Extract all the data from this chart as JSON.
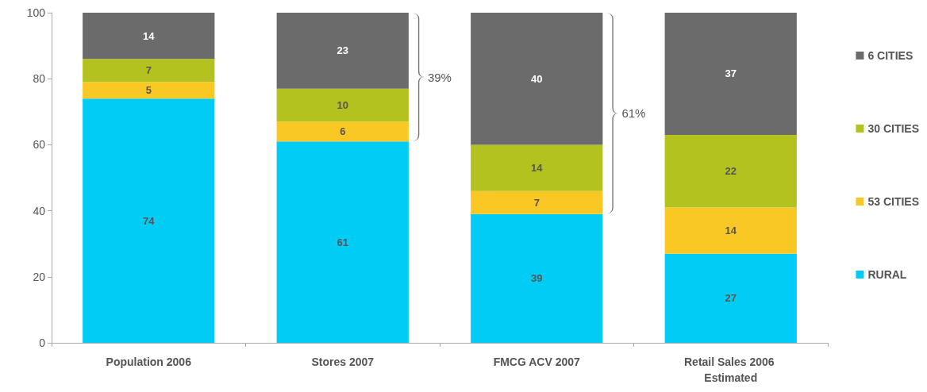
{
  "chart_data": {
    "type": "bar",
    "stacked": true,
    "categories": [
      "Population 2006",
      "Stores 2007",
      "FMCG ACV 2007",
      "Retail Sales 2006 Estimated"
    ],
    "series": [
      {
        "name": "RURAL",
        "color": "#00ccf5",
        "values": [
          74,
          61,
          39,
          27
        ]
      },
      {
        "name": "53 CITIES",
        "color": "#f9c825",
        "values": [
          5,
          6,
          7,
          14
        ]
      },
      {
        "name": "30 CITIES",
        "color": "#b3c21e",
        "values": [
          7,
          10,
          14,
          22
        ]
      },
      {
        "name": "6 CITIES",
        "color": "#6b6b6b",
        "values": [
          14,
          23,
          40,
          37
        ]
      }
    ],
    "ylim": [
      0,
      100
    ],
    "yticks": [
      0,
      20,
      40,
      60,
      80,
      100
    ],
    "grid": false,
    "legend": "right",
    "data_labels": true,
    "annotations": [
      "39%",
      "61%"
    ]
  }
}
